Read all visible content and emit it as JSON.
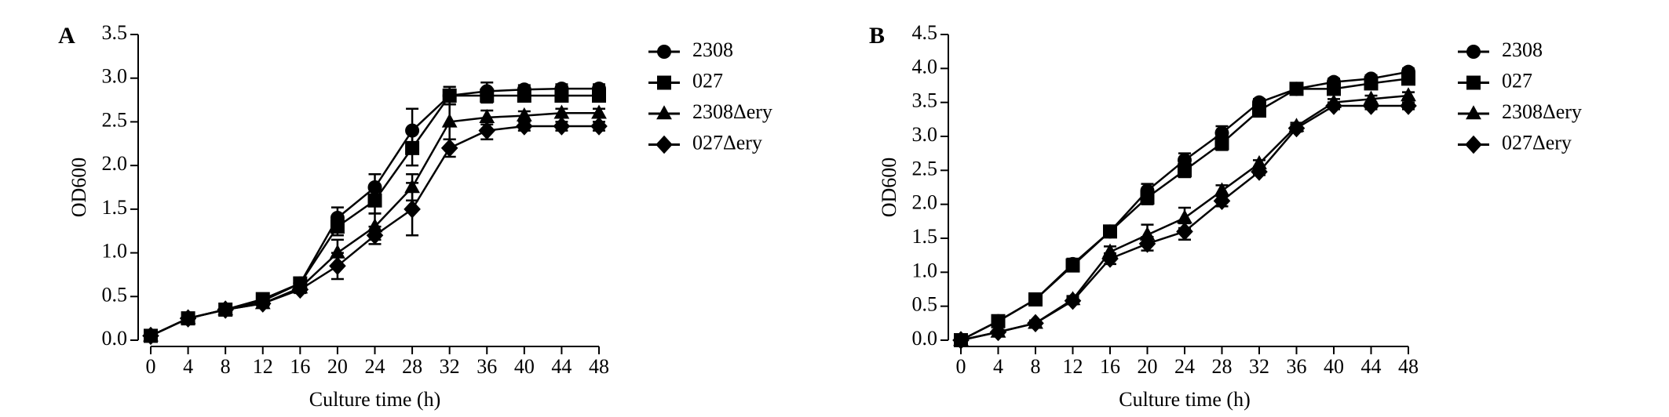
{
  "chart_data": [
    {
      "type": "line",
      "panel": "A",
      "x_label": "Culture time (h)",
      "y_label": "OD600",
      "x": [
        0,
        4,
        8,
        12,
        16,
        20,
        24,
        28,
        32,
        36,
        40,
        44,
        48
      ],
      "xlim": [
        0,
        48
      ],
      "xticks": [
        0,
        4,
        8,
        12,
        16,
        20,
        24,
        28,
        32,
        36,
        40,
        44,
        48
      ],
      "ylim": [
        0,
        3.5
      ],
      "yticks": [
        {
          "value": 0,
          "label": "0.0"
        },
        0.5,
        {
          "value": 1,
          "label": "1.0"
        },
        1.5,
        {
          "value": 2,
          "label": "2.0"
        },
        2.5,
        {
          "value": 3,
          "label": "3.0"
        },
        3.5
      ],
      "series": [
        {
          "name": "2308",
          "color": "#000000",
          "marker": "circle",
          "values": [
            0.05,
            0.25,
            0.35,
            0.45,
            0.65,
            1.4,
            1.75,
            2.4,
            2.8,
            2.85,
            2.87,
            2.88,
            2.88
          ],
          "errors": [
            0.02,
            0.03,
            0.03,
            0.04,
            0.04,
            0.12,
            0.15,
            0.25,
            0.1,
            0.1,
            0.05,
            0.05,
            0.05
          ]
        },
        {
          "name": "027",
          "color": "#000000",
          "marker": "square",
          "values": [
            0.05,
            0.25,
            0.35,
            0.47,
            0.65,
            1.3,
            1.6,
            2.2,
            2.8,
            2.8,
            2.8,
            2.8,
            2.8
          ],
          "errors": [
            0.02,
            0.03,
            0.03,
            0.04,
            0.04,
            0.1,
            0.15,
            0.2,
            0.1,
            0.08,
            0.05,
            0.05,
            0.05
          ]
        },
        {
          "name": "2308Δery",
          "color": "#000000",
          "marker": "triangle",
          "values": [
            0.05,
            0.25,
            0.35,
            0.42,
            0.6,
            1.0,
            1.3,
            1.75,
            2.5,
            2.55,
            2.57,
            2.6,
            2.6
          ],
          "errors": [
            0.02,
            0.03,
            0.03,
            0.04,
            0.04,
            0.15,
            0.15,
            0.15,
            0.2,
            0.08,
            0.05,
            0.05,
            0.05
          ]
        },
        {
          "name": "027Δery",
          "color": "#000000",
          "marker": "diamond",
          "values": [
            0.05,
            0.25,
            0.35,
            0.42,
            0.58,
            0.85,
            1.2,
            1.5,
            2.2,
            2.4,
            2.45,
            2.45,
            2.45
          ],
          "errors": [
            0.02,
            0.03,
            0.03,
            0.04,
            0.04,
            0.15,
            0.1,
            0.3,
            0.1,
            0.1,
            0.05,
            0.05,
            0.05
          ]
        }
      ]
    },
    {
      "type": "line",
      "panel": "B",
      "x_label": "Culture time (h)",
      "y_label": "OD600",
      "x": [
        0,
        4,
        8,
        12,
        16,
        20,
        24,
        28,
        32,
        36,
        40,
        44,
        48
      ],
      "xlim": [
        0,
        48
      ],
      "xticks": [
        0,
        4,
        8,
        12,
        16,
        20,
        24,
        28,
        32,
        36,
        40,
        44,
        48
      ],
      "ylim": [
        0,
        4.5
      ],
      "yticks": [
        {
          "value": 0,
          "label": "0.0"
        },
        0.5,
        {
          "value": 1,
          "label": "1.0"
        },
        1.5,
        {
          "value": 2,
          "label": "2.0"
        },
        2.5,
        {
          "value": 3,
          "label": "3.0"
        },
        3.5,
        {
          "value": 4,
          "label": "4.0"
        },
        4.5
      ],
      "series": [
        {
          "name": "2308",
          "color": "#000000",
          "marker": "circle",
          "values": [
            0,
            0.28,
            0.6,
            1.12,
            1.6,
            2.2,
            2.65,
            3.05,
            3.5,
            3.7,
            3.8,
            3.85,
            3.95
          ],
          "errors": [
            0.02,
            0.04,
            0.05,
            0.08,
            0.08,
            0.1,
            0.1,
            0.1,
            0.05,
            0.05,
            0.05,
            0.05,
            0.05
          ]
        },
        {
          "name": "027",
          "color": "#000000",
          "marker": "square",
          "values": [
            0,
            0.28,
            0.6,
            1.1,
            1.6,
            2.1,
            2.5,
            2.9,
            3.38,
            3.7,
            3.7,
            3.78,
            3.85
          ],
          "errors": [
            0.02,
            0.04,
            0.05,
            0.08,
            0.08,
            0.1,
            0.1,
            0.1,
            0.08,
            0.05,
            0.05,
            0.05,
            0.05
          ]
        },
        {
          "name": "2308Δery",
          "color": "#000000",
          "marker": "triangle",
          "values": [
            0,
            0.12,
            0.25,
            0.6,
            1.3,
            1.55,
            1.8,
            2.2,
            2.6,
            3.15,
            3.5,
            3.55,
            3.6
          ],
          "errors": [
            0.02,
            0.03,
            0.04,
            0.05,
            0.08,
            0.15,
            0.15,
            0.08,
            0.05,
            0.05,
            0.05,
            0.05,
            0.05
          ]
        },
        {
          "name": "027Δery",
          "color": "#000000",
          "marker": "diamond",
          "values": [
            0,
            0.12,
            0.25,
            0.58,
            1.2,
            1.42,
            1.6,
            2.05,
            2.48,
            3.12,
            3.45,
            3.45,
            3.45
          ],
          "errors": [
            0.02,
            0.03,
            0.04,
            0.05,
            0.08,
            0.1,
            0.12,
            0.08,
            0.05,
            0.05,
            0.05,
            0.05,
            0.05
          ]
        }
      ]
    }
  ]
}
